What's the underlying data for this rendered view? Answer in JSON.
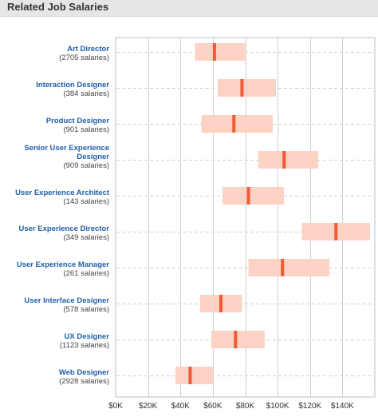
{
  "header": {
    "title": "Related Job Salaries"
  },
  "colors": {
    "range_fill": "#fbd2c4",
    "median_marker": "#ef5a35",
    "job_title_text": "#1f5fa8",
    "gridline": "#cfcfcf"
  },
  "chart_data": {
    "type": "range-bar",
    "title": "Related Job Salaries",
    "xlabel": "",
    "ylabel": "",
    "xlim": [
      0,
      160000
    ],
    "x_ticks": [
      0,
      20000,
      40000,
      60000,
      80000,
      100000,
      120000,
      140000
    ],
    "x_tick_labels": [
      "$0K",
      "$20K",
      "$40K",
      "$60K",
      "$80K",
      "$100K",
      "$120K",
      "$140K"
    ],
    "grid": true,
    "jobs": [
      {
        "title_lines": [
          "Art Director"
        ],
        "count_label": "(2705 salaries)",
        "low": 49000,
        "median": 61000,
        "high": 80000
      },
      {
        "title_lines": [
          "Interaction Designer"
        ],
        "count_label": "(384 salaries)",
        "low": 63000,
        "median": 78000,
        "high": 99000
      },
      {
        "title_lines": [
          "Product Designer"
        ],
        "count_label": "(901 salaries)",
        "low": 53000,
        "median": 73000,
        "high": 97000
      },
      {
        "title_lines": [
          "Senior User Experience",
          "Designer"
        ],
        "count_label": "(909 salaries)",
        "low": 88000,
        "median": 104000,
        "high": 125000
      },
      {
        "title_lines": [
          "User Experience Architect"
        ],
        "count_label": "(143 salaries)",
        "low": 66000,
        "median": 82000,
        "high": 104000
      },
      {
        "title_lines": [
          "User Experience Director"
        ],
        "count_label": "(349 salaries)",
        "low": 115000,
        "median": 136000,
        "high": 157000
      },
      {
        "title_lines": [
          "User Experience Manager"
        ],
        "count_label": "(261 salaries)",
        "low": 82000,
        "median": 103000,
        "high": 132000
      },
      {
        "title_lines": [
          "User Interface Designer"
        ],
        "count_label": "(578 salaries)",
        "low": 52000,
        "median": 65000,
        "high": 78000
      },
      {
        "title_lines": [
          "UX Designer"
        ],
        "count_label": "(1123 salaries)",
        "low": 59000,
        "median": 74000,
        "high": 92000
      },
      {
        "title_lines": [
          "Web Designer"
        ],
        "count_label": "(2928 salaries)",
        "low": 37000,
        "median": 46000,
        "high": 60000
      }
    ]
  }
}
